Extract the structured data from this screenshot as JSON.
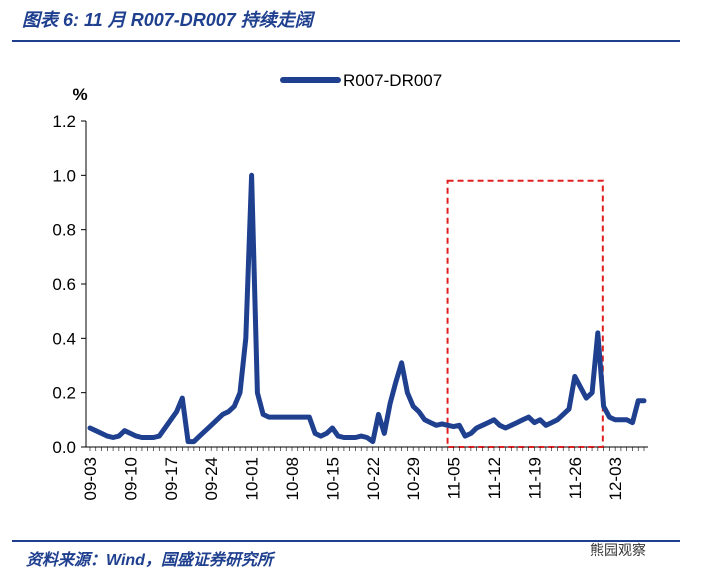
{
  "header": {
    "title": "图表 6: 11 月 R007-DR007 持续走阔"
  },
  "footer": {
    "source": "资料来源：Wind，国盛证券研究所",
    "watermark": "熊园观察"
  },
  "colors": {
    "series": "#1f3f8f",
    "highlight": "#e02020",
    "title": "#1f3f8f"
  },
  "chart_data": {
    "type": "line",
    "title": "",
    "xlabel": "",
    "ylabel": "%",
    "ylim": [
      0,
      1.2
    ],
    "yticks": [
      "0.0",
      "0.2",
      "0.4",
      "0.6",
      "0.8",
      "1.0",
      "1.2"
    ],
    "xticks": [
      "09-03",
      "09-10",
      "09-17",
      "09-24",
      "10-01",
      "10-08",
      "10-15",
      "10-22",
      "10-29",
      "11-05",
      "11-12",
      "11-19",
      "11-26",
      "12-03"
    ],
    "legend": {
      "position": "top-center",
      "entries": [
        "R007-DR007"
      ]
    },
    "highlight_range": {
      "x_start": "11-05",
      "x_end": "11-30",
      "y_min": 0,
      "y_max": 0.98
    },
    "series": [
      {
        "name": "R007-DR007",
        "x": [
          "09-03",
          "09-04",
          "09-05",
          "09-06",
          "09-07",
          "09-08",
          "09-09",
          "09-10",
          "09-11",
          "09-12",
          "09-13",
          "09-14",
          "09-15",
          "09-16",
          "09-17",
          "09-18",
          "09-19",
          "09-20",
          "09-21",
          "09-22",
          "09-23",
          "09-24",
          "09-25",
          "09-26",
          "09-27",
          "09-28",
          "09-29",
          "09-30",
          "10-01",
          "10-02",
          "10-03",
          "10-04",
          "10-05",
          "10-06",
          "10-07",
          "10-08",
          "10-09",
          "10-10",
          "10-11",
          "10-12",
          "10-13",
          "10-14",
          "10-15",
          "10-16",
          "10-17",
          "10-18",
          "10-19",
          "10-20",
          "10-21",
          "10-22",
          "10-23",
          "10-24",
          "10-25",
          "10-26",
          "10-27",
          "10-28",
          "10-29",
          "10-30",
          "10-31",
          "11-01",
          "11-02",
          "11-03",
          "11-04",
          "11-05",
          "11-06",
          "11-07",
          "11-08",
          "11-09",
          "11-10",
          "11-11",
          "11-12",
          "11-13",
          "11-14",
          "11-15",
          "11-16",
          "11-17",
          "11-18",
          "11-19",
          "11-20",
          "11-21",
          "11-22",
          "11-23",
          "11-24",
          "11-25",
          "11-26",
          "11-27",
          "11-28",
          "11-29",
          "11-30",
          "12-01",
          "12-02",
          "12-03",
          "12-04",
          "12-05",
          "12-06",
          "12-07",
          "12-08"
        ],
        "values": [
          0.07,
          0.06,
          0.05,
          0.04,
          0.035,
          0.04,
          0.06,
          0.05,
          0.04,
          0.035,
          0.035,
          0.035,
          0.04,
          0.07,
          0.1,
          0.13,
          0.18,
          0.02,
          0.02,
          0.04,
          0.06,
          0.08,
          0.1,
          0.12,
          0.13,
          0.15,
          0.2,
          0.4,
          1.0,
          0.2,
          0.12,
          0.11,
          0.11,
          0.11,
          0.11,
          0.11,
          0.11,
          0.11,
          0.11,
          0.05,
          0.04,
          0.05,
          0.07,
          0.04,
          0.035,
          0.035,
          0.035,
          0.04,
          0.035,
          0.02,
          0.12,
          0.05,
          0.16,
          0.24,
          0.31,
          0.2,
          0.15,
          0.13,
          0.1,
          0.09,
          0.08,
          0.085,
          0.08,
          0.075,
          0.08,
          0.04,
          0.05,
          0.07,
          0.08,
          0.09,
          0.1,
          0.08,
          0.07,
          0.08,
          0.09,
          0.1,
          0.11,
          0.09,
          0.1,
          0.08,
          0.09,
          0.1,
          0.12,
          0.14,
          0.26,
          0.22,
          0.18,
          0.2,
          0.42,
          0.15,
          0.11,
          0.1,
          0.1,
          0.1,
          0.09,
          0.17,
          0.17
        ]
      }
    ]
  }
}
